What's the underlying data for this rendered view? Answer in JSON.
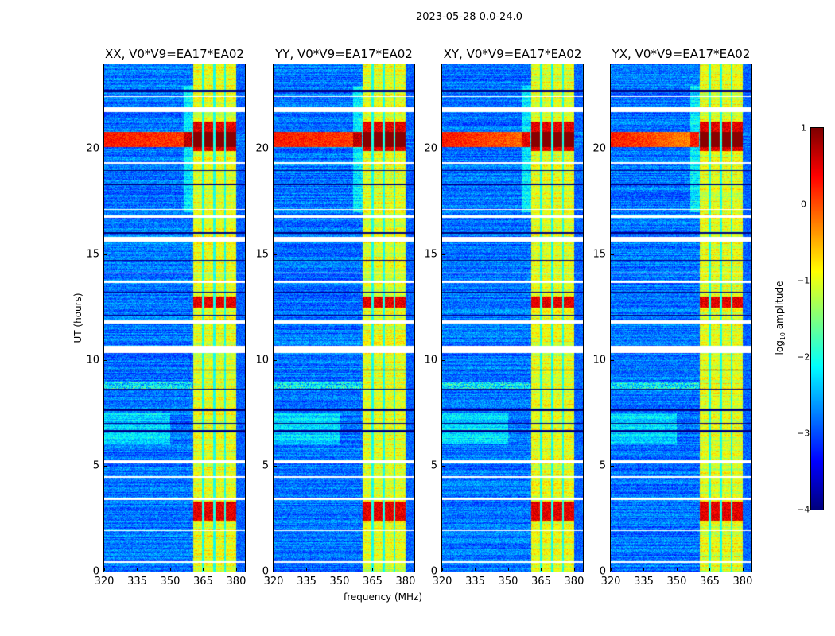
{
  "chart_data": {
    "type": "heatmap",
    "suptitle": "2023-05-28 0.0-24.0",
    "xlabel": "frequency (MHz)",
    "ylabel": "UT (hours)",
    "xlim": [
      320,
      384
    ],
    "ylim": [
      0,
      24
    ],
    "xticks": [
      "320",
      "335",
      "350",
      "365",
      "380"
    ],
    "xtick_values": [
      320,
      335,
      350,
      365,
      380
    ],
    "yticks": [
      "0",
      "5",
      "10",
      "15",
      "20"
    ],
    "ytick_values": [
      0,
      5,
      10,
      15,
      20
    ],
    "panels": [
      {
        "title": "XX, V0*V9=EA17*EA02",
        "offband_rfi_strength": 1.0
      },
      {
        "title": "YY, V0*V9=EA17*EA02",
        "offband_rfi_strength": 1.0
      },
      {
        "title": "XY, V0*V9=EA17*EA02",
        "offband_rfi_strength": 0.7
      },
      {
        "title": "YX, V0*V9=EA17*EA02",
        "offband_rfi_strength": 0.5
      }
    ],
    "colorbar": {
      "label_prefix": "log",
      "label_sub": "10",
      "label_suffix": " amplitude",
      "clim": [
        -4,
        1
      ],
      "ticks": [
        "1",
        "0",
        "−1",
        "−2",
        "−3",
        "−4"
      ],
      "tick_values": [
        1,
        0,
        -1,
        -2,
        -3,
        -4
      ],
      "colormap": "jet"
    },
    "features": {
      "background_log_amp": -2.8,
      "band_mhz": [
        360.5,
        380
      ],
      "band_log_amp": -1.0,
      "channel_gaps_mhz": [
        365,
        370,
        375
      ],
      "strong_rfi_hours": [
        [
          19.9,
          21.3
        ],
        [
          2.4,
          3.3
        ],
        [
          12.5,
          13.0
        ]
      ],
      "flagged_hours": [
        [
          21.75,
          21.95
        ],
        [
          15.6,
          15.85
        ],
        [
          13.65,
          13.75
        ],
        [
          11.75,
          11.9
        ],
        [
          10.35,
          10.7
        ],
        [
          5.1,
          5.25
        ],
        [
          3.4,
          3.5
        ],
        [
          0.4,
          0.48
        ],
        [
          19.3,
          19.38
        ],
        [
          17.1,
          17.15
        ],
        [
          16.75,
          16.85
        ],
        [
          14.1,
          14.15
        ],
        [
          4.45,
          4.5
        ],
        [
          1.9,
          1.95
        ],
        [
          22.45,
          22.5
        ]
      ],
      "dropout_hours": [
        [
          22.7,
          22.78
        ],
        [
          18.3,
          18.36
        ],
        [
          16.0,
          16.05
        ],
        [
          14.7,
          14.76
        ],
        [
          13.2,
          13.25
        ],
        [
          12.1,
          12.15
        ],
        [
          9.5,
          9.56
        ],
        [
          8.6,
          8.66
        ],
        [
          7.6,
          7.7
        ],
        [
          7.0,
          7.05
        ],
        [
          6.6,
          6.68
        ],
        [
          18.95,
          19.0
        ]
      ]
    }
  }
}
